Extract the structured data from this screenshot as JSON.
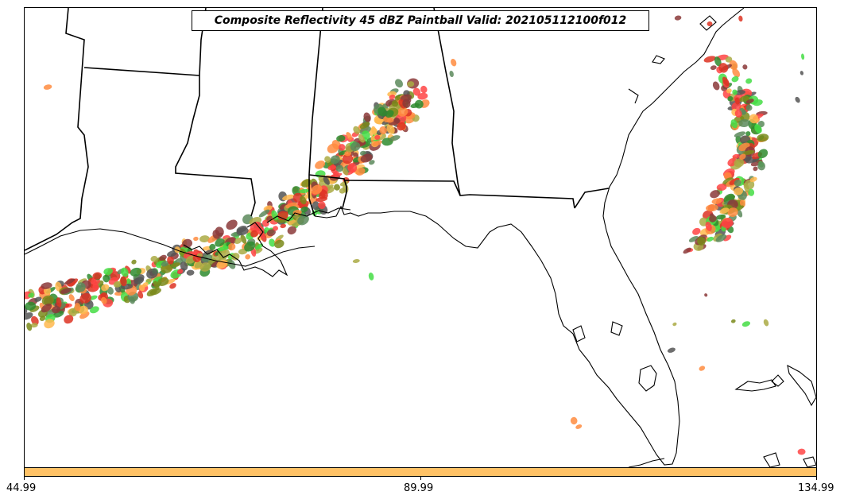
{
  "title": "Composite Reflectivity 45 dBZ Paintball Valid: 202105112100f012",
  "colorbar": {
    "color": "#ffc266",
    "min": 44.99,
    "max": 134.99,
    "ticks": [
      "44.99",
      "89.99",
      "134.99"
    ]
  },
  "member_colors": [
    "#ff4444",
    "#ff8c40",
    "#ffb84d",
    "#aaaa44",
    "#7a8a1a",
    "#2e8b2e",
    "#5c8a5c",
    "#8b3a3a",
    "#dd3322",
    "#44dd44",
    "#555555"
  ],
  "basemap": {
    "coastline_color": "#000000",
    "state_border_color": "#000000"
  }
}
